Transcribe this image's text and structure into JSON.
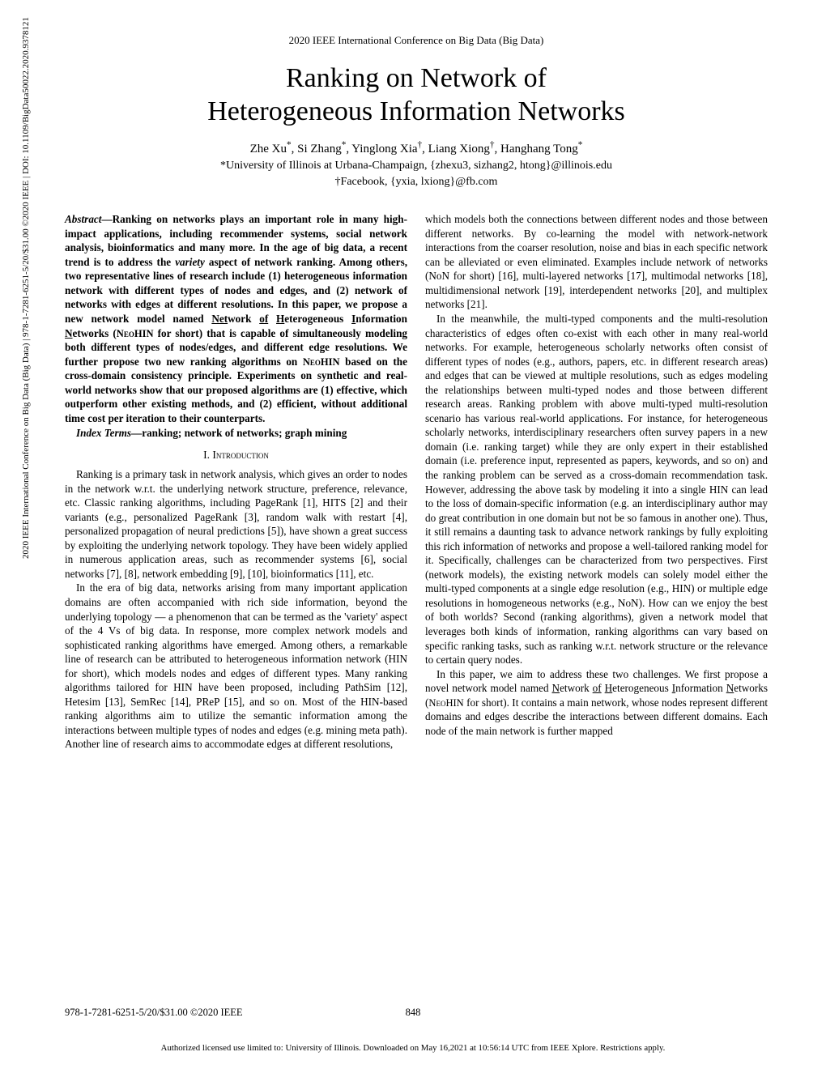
{
  "header": {
    "conference": "2020 IEEE International Conference on Big Data (Big Data)"
  },
  "title_line1": "Ranking on Network of",
  "title_line2": "Heterogeneous Information Networks",
  "authors": "Zhe Xu*, Si Zhang*, Yinglong Xia†, Liang Xiong†, Hanghang Tong*",
  "affiliation1": "*University of Illinois at Urbana-Champaign, {zhexu3, sizhang2, htong}@illinois.edu",
  "affiliation2": "†Facebook, {yxia, lxiong}@fb.com",
  "abstract_label": "Abstract",
  "abstract_text": "—Ranking on networks plays an important role in many high-impact applications, including recommender systems, social network analysis, bioinformatics and many more. In the age of big data, a recent trend is to address the ",
  "abstract_text2": " aspect of network ranking. Among others, two representative lines of research include (1) heterogeneous information network with different types of nodes and edges, and (2) network of networks with edges at different resolutions. In this paper, we propose a new network model named ",
  "abstract_text3": " for short) that is capable of simultaneously modeling both different types of nodes/edges, and different edge resolutions. We further propose two new ranking algorithms on ",
  "abstract_text4": " based on the cross-domain consistency principle. Experiments on synthetic and real-world networks show that our proposed algorithms are (1) effective, which outperform other existing methods, and (2) efficient, without additional time cost per iteration to their counterparts.",
  "variety": "variety",
  "neohin1": "Net",
  "neohin2": "work ",
  "neohin3": "of",
  "neohin4": " ",
  "neohin5": "H",
  "neohin6": "eterogeneous ",
  "neohin7": "I",
  "neohin8": "nformation ",
  "neohin9": "N",
  "neohin10": "etworks (",
  "neohin_caps": "NeoHIN",
  "index_terms_label": "Index Terms",
  "index_terms_body": "—ranking; network of networks; graph mining",
  "section1": "I. Introduction",
  "intro_p1": "Ranking is a primary task in network analysis, which gives an order to nodes in the network w.r.t. the underlying network structure, preference, relevance, etc. Classic ranking algorithms, including PageRank [1], HITS [2] and their variants (e.g., personalized PageRank [3], random walk with restart [4], personalized propagation of neural predictions [5]), have shown a great success by exploiting the underlying network topology. They have been widely applied in numerous application areas, such as recommender systems [6], social networks [7], [8], network embedding [9], [10], bioinformatics [11], etc.",
  "intro_p2": "In the era of big data, networks arising from many important application domains are often accompanied with rich side information, beyond the underlying topology — a phenomenon that can be termed as the 'variety' aspect of the 4 Vs of big data. In response, more complex network models and sophisticated ranking algorithms have emerged. Among others, a remarkable line of research can be attributed to heterogeneous information network (HIN for short), which models nodes and edges of different types. Many ranking algorithms tailored for HIN have been proposed, including PathSim [12], Hetesim [13], SemRec [14], PReP [15], and so on. Most of the HIN-based ranking algorithms aim to utilize the semantic information among the interactions between multiple types of nodes and edges (e.g. mining meta path). Another line of research aims to accommodate edges at different resolutions,",
  "right_p1": "which models both the connections between different nodes and those between different networks. By co-learning the model with network-network interactions from the coarser resolution, noise and bias in each specific network can be alleviated or even eliminated. Examples include network of networks (NoN for short) [16], multi-layered networks [17], multimodal networks [18], multidimensional network [19], interdependent networks [20], and multiplex networks [21].",
  "right_p2": "In the meanwhile, the multi-typed components and the multi-resolution characteristics of edges often co-exist with each other in many real-world networks. For example, heterogeneous scholarly networks often consist of different types of nodes (e.g., authors, papers, etc. in different research areas) and edges that can be viewed at multiple resolutions, such as edges modeling the relationships between multi-typed nodes and those between different research areas. Ranking problem with above multi-typed multi-resolution scenario has various real-world applications. For instance, for heterogeneous scholarly networks, interdisciplinary researchers often survey papers in a new domain (i.e. ranking target) while they are only expert in their established domain (i.e. preference input, represented as papers, keywords, and so on) and the ranking problem can be served as a cross-domain recommendation task. However, addressing the above task by modeling it into a single HIN can lead to the loss of domain-specific information (e.g. an interdisciplinary author may do great contribution in one domain but not be so famous in another one). Thus, it still remains a daunting task to advance network rankings by fully exploiting this rich information of networks and propose a well-tailored ranking model for it. Specifically, challenges can be characterized from two perspectives. First (network models), the existing network models can solely model either the multi-typed components at a single edge resolution (e.g., HIN) or multiple edge resolutions in homogeneous networks (e.g., NoN). How can we enjoy the best of both worlds? Second (ranking algorithms), given a network model that leverages both kinds of information, ranking algorithms can vary based on specific ranking tasks, such as ranking w.r.t. network structure or the relevance to certain query nodes.",
  "right_p3_a": "In this paper, we aim to address these two challenges. We first propose a novel network model named ",
  "right_p3_n1": "N",
  "right_p3_n2": "etwork ",
  "right_p3_n3": "of",
  "right_p3_n4": " ",
  "right_p3_n5": "H",
  "right_p3_n6": "eterogeneous ",
  "right_p3_n7": "I",
  "right_p3_n8": "nformation ",
  "right_p3_n9": "N",
  "right_p3_n10": "etworks (",
  "right_p3_b": " for short). It contains a main network, whose nodes represent different domains and edges describe the interactions between different domains. Each node of the main network is further mapped",
  "footer_left": "978-1-7281-6251-5/20/$31.00 ©2020 IEEE",
  "footer_center": "848",
  "license_footer": "Authorized licensed use limited to: University of Illinois. Downloaded on May 16,2021 at 10:56:14 UTC from IEEE Xplore. Restrictions apply.",
  "side_text": "2020 IEEE International Conference on Big Data (Big Data) | 978-1-7281-6251-5/20/$31.00 ©2020 IEEE | DOI: 10.1109/BigData50022.2020.9378121"
}
